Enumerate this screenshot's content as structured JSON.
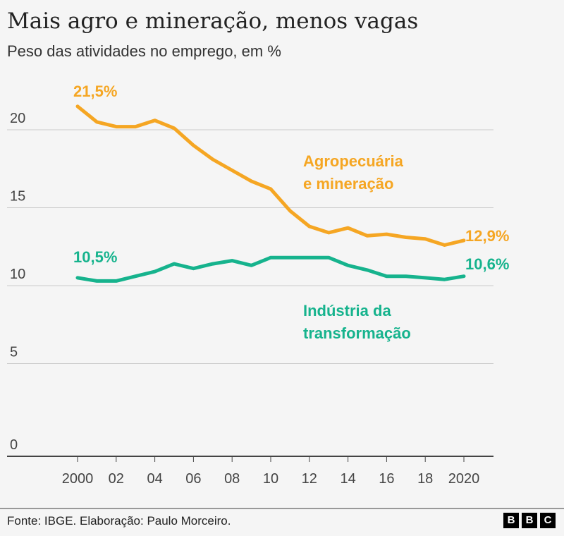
{
  "title": "Mais agro e mineração, menos vagas",
  "subtitle": "Peso das atividades no emprego, em %",
  "source": "Fonte: IBGE. Elaboração: Paulo Morceiro.",
  "logo": [
    "B",
    "B",
    "C"
  ],
  "chart_data": {
    "type": "line",
    "x": [
      2000,
      2001,
      2002,
      2003,
      2004,
      2005,
      2006,
      2007,
      2008,
      2009,
      2010,
      2011,
      2012,
      2013,
      2014,
      2015,
      2016,
      2017,
      2018,
      2019,
      2020
    ],
    "xticks": [
      2000,
      2002,
      2004,
      2006,
      2008,
      2010,
      2012,
      2014,
      2016,
      2018,
      2020
    ],
    "xtick_labels": [
      "2000",
      "02",
      "04",
      "06",
      "08",
      "10",
      "12",
      "14",
      "16",
      "18",
      "2020"
    ],
    "yticks": [
      0,
      5,
      10,
      15,
      20
    ],
    "ytick_labels": [
      "0",
      "5",
      "10",
      "15",
      "20"
    ],
    "ylim": [
      0,
      22
    ],
    "grid": "horizontal",
    "series": [
      {
        "name": "Agropecuária\ne mineração",
        "label_lines": [
          "Agropecuária",
          "e mineração"
        ],
        "color": "#f5a623",
        "values": [
          21.5,
          20.5,
          20.2,
          20.2,
          20.6,
          20.1,
          19.0,
          18.1,
          17.4,
          16.7,
          16.2,
          14.8,
          13.8,
          13.4,
          13.7,
          13.2,
          13.3,
          13.1,
          13.0,
          12.6,
          12.9
        ],
        "start_label": "21,5%",
        "end_label": "12,9%"
      },
      {
        "name": "Indústria da\ntransformação",
        "label_lines": [
          "Indústria da",
          "transformação"
        ],
        "color": "#16b38d",
        "values": [
          10.5,
          10.3,
          10.3,
          10.6,
          10.9,
          11.4,
          11.1,
          11.4,
          11.6,
          11.3,
          11.8,
          11.8,
          11.8,
          11.8,
          11.3,
          11.0,
          10.6,
          10.6,
          10.5,
          10.4,
          10.6
        ],
        "start_label": "10,5%",
        "end_label": "10,6%"
      }
    ]
  }
}
